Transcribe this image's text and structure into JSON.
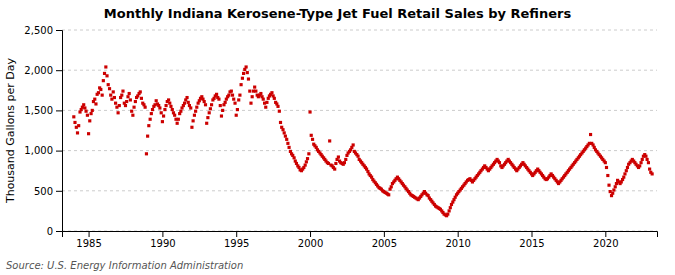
{
  "chart_data": {
    "type": "scatter",
    "title": "Monthly Indiana Kerosene-Type Jet Fuel Retail Sales by Refiners",
    "ylabel": "Thousand Gallons per Day",
    "annotations": [
      "Source: U.S. Energy Information Administration"
    ],
    "color": "#cc0000",
    "marker": "square",
    "grid": "y",
    "xlim": [
      1983.2,
      2023.5
    ],
    "xticks": [
      1985,
      1990,
      1995,
      2000,
      2005,
      2010,
      2015,
      2020
    ],
    "ylim": [
      0,
      2500
    ],
    "yticks": [
      0,
      500,
      {
        "value": 1000,
        "label": "1,000"
      },
      {
        "value": 1500,
        "label": "1,500"
      },
      {
        "value": 2000,
        "label": "2,000"
      },
      {
        "value": 2500,
        "label": "2,500"
      }
    ],
    "x": [
      1984.0,
      1984.08,
      1984.17,
      1984.25,
      1984.33,
      1984.42,
      1984.5,
      1984.58,
      1984.67,
      1984.75,
      1984.83,
      1984.92,
      1985.0,
      1985.08,
      1985.17,
      1985.25,
      1985.33,
      1985.42,
      1985.5,
      1985.58,
      1985.67,
      1985.75,
      1985.83,
      1985.92,
      1986.0,
      1986.08,
      1986.17,
      1986.25,
      1986.33,
      1986.42,
      1986.5,
      1986.58,
      1986.67,
      1986.75,
      1986.83,
      1986.92,
      1987.0,
      1987.08,
      1987.17,
      1987.25,
      1987.33,
      1987.42,
      1987.5,
      1987.58,
      1987.67,
      1987.75,
      1987.83,
      1987.92,
      1988.0,
      1988.08,
      1988.17,
      1988.25,
      1988.33,
      1988.42,
      1988.5,
      1988.58,
      1988.67,
      1988.75,
      1988.83,
      1988.92,
      1989.0,
      1989.08,
      1989.17,
      1989.25,
      1989.33,
      1989.42,
      1989.5,
      1989.58,
      1989.67,
      1989.75,
      1989.83,
      1989.92,
      1990.0,
      1990.08,
      1990.17,
      1990.25,
      1990.33,
      1990.42,
      1990.5,
      1990.58,
      1990.67,
      1990.75,
      1990.83,
      1990.92,
      1991.0,
      1991.08,
      1991.17,
      1991.25,
      1991.33,
      1991.42,
      1991.5,
      1991.58,
      1991.67,
      1991.75,
      1991.83,
      1991.92,
      1992.0,
      1992.08,
      1992.17,
      1992.25,
      1992.33,
      1992.42,
      1992.5,
      1992.58,
      1992.67,
      1992.75,
      1992.83,
      1992.92,
      1993.0,
      1993.08,
      1993.17,
      1993.25,
      1993.33,
      1993.42,
      1993.5,
      1993.58,
      1993.67,
      1993.75,
      1993.83,
      1993.92,
      1994.0,
      1994.08,
      1994.17,
      1994.25,
      1994.33,
      1994.42,
      1994.5,
      1994.58,
      1994.67,
      1994.75,
      1994.83,
      1994.92,
      1995.0,
      1995.08,
      1995.17,
      1995.25,
      1995.33,
      1995.42,
      1995.5,
      1995.58,
      1995.67,
      1995.75,
      1995.83,
      1995.92,
      1996.0,
      1996.08,
      1996.17,
      1996.25,
      1996.33,
      1996.42,
      1996.5,
      1996.58,
      1996.67,
      1996.75,
      1996.83,
      1996.92,
      1997.0,
      1997.08,
      1997.17,
      1997.25,
      1997.33,
      1997.42,
      1997.5,
      1997.58,
      1997.67,
      1997.75,
      1997.83,
      1997.92,
      1998.0,
      1998.08,
      1998.17,
      1998.25,
      1998.33,
      1998.42,
      1998.5,
      1998.58,
      1998.67,
      1998.75,
      1998.83,
      1998.92,
      1999.0,
      1999.08,
      1999.17,
      1999.25,
      1999.33,
      1999.42,
      1999.5,
      1999.58,
      1999.67,
      1999.75,
      1999.83,
      1999.92,
      2000.0,
      2000.08,
      2000.17,
      2000.25,
      2000.33,
      2000.42,
      2000.5,
      2000.58,
      2000.67,
      2000.75,
      2000.83,
      2000.92,
      2001.0,
      2001.08,
      2001.17,
      2001.25,
      2001.33,
      2001.42,
      2001.5,
      2001.58,
      2001.67,
      2001.75,
      2001.83,
      2001.92,
      2002.0,
      2002.08,
      2002.17,
      2002.25,
      2002.33,
      2002.42,
      2002.5,
      2002.58,
      2002.67,
      2002.75,
      2002.83,
      2002.92,
      2003.0,
      2003.08,
      2003.17,
      2003.25,
      2003.33,
      2003.42,
      2003.5,
      2003.58,
      2003.67,
      2003.75,
      2003.83,
      2003.92,
      2004.0,
      2004.08,
      2004.17,
      2004.25,
      2004.33,
      2004.42,
      2004.5,
      2004.58,
      2004.67,
      2004.75,
      2004.83,
      2004.92,
      2005.0,
      2005.08,
      2005.17,
      2005.25,
      2005.33,
      2005.42,
      2005.5,
      2005.58,
      2005.67,
      2005.75,
      2005.83,
      2005.92,
      2006.0,
      2006.08,
      2006.17,
      2006.25,
      2006.33,
      2006.42,
      2006.5,
      2006.58,
      2006.67,
      2006.75,
      2006.83,
      2006.92,
      2007.0,
      2007.08,
      2007.17,
      2007.25,
      2007.33,
      2007.42,
      2007.5,
      2007.58,
      2007.67,
      2007.75,
      2007.83,
      2007.92,
      2008.0,
      2008.08,
      2008.17,
      2008.25,
      2008.33,
      2008.42,
      2008.5,
      2008.58,
      2008.67,
      2008.75,
      2008.83,
      2008.92,
      2009.0,
      2009.08,
      2009.17,
      2009.25,
      2009.33,
      2009.42,
      2009.5,
      2009.58,
      2009.67,
      2009.75,
      2009.83,
      2009.92,
      2010.0,
      2010.08,
      2010.17,
      2010.25,
      2010.33,
      2010.42,
      2010.5,
      2010.58,
      2010.67,
      2010.75,
      2010.83,
      2010.92,
      2011.0,
      2011.08,
      2011.17,
      2011.25,
      2011.33,
      2011.42,
      2011.5,
      2011.58,
      2011.67,
      2011.75,
      2011.83,
      2011.92,
      2012.0,
      2012.08,
      2012.17,
      2012.25,
      2012.33,
      2012.42,
      2012.5,
      2012.58,
      2012.67,
      2012.75,
      2012.83,
      2012.92,
      2013.0,
      2013.08,
      2013.17,
      2013.25,
      2013.33,
      2013.42,
      2013.5,
      2013.58,
      2013.67,
      2013.75,
      2013.83,
      2013.92,
      2014.0,
      2014.08,
      2014.17,
      2014.25,
      2014.33,
      2014.42,
      2014.5,
      2014.58,
      2014.67,
      2014.75,
      2014.83,
      2014.92,
      2015.0,
      2015.08,
      2015.17,
      2015.25,
      2015.33,
      2015.42,
      2015.5,
      2015.58,
      2015.67,
      2015.75,
      2015.83,
      2015.92,
      2016.0,
      2016.08,
      2016.17,
      2016.25,
      2016.33,
      2016.42,
      2016.5,
      2016.58,
      2016.67,
      2016.75,
      2016.83,
      2016.92,
      2017.0,
      2017.08,
      2017.17,
      2017.25,
      2017.33,
      2017.42,
      2017.5,
      2017.58,
      2017.67,
      2017.75,
      2017.83,
      2017.92,
      2018.0,
      2018.08,
      2018.17,
      2018.25,
      2018.33,
      2018.42,
      2018.5,
      2018.58,
      2018.67,
      2018.75,
      2018.83,
      2018.92,
      2019.0,
      2019.08,
      2019.17,
      2019.25,
      2019.33,
      2019.42,
      2019.5,
      2019.58,
      2019.67,
      2019.75,
      2019.83,
      2019.92,
      2020.0,
      2020.08,
      2020.17,
      2020.25,
      2020.33,
      2020.42,
      2020.5,
      2020.58,
      2020.67,
      2020.75,
      2020.83,
      2020.92,
      2021.0,
      2021.08,
      2021.17,
      2021.25,
      2021.33,
      2021.42,
      2021.5,
      2021.58,
      2021.67,
      2021.75,
      2021.83,
      2021.92,
      2022.0,
      2022.08,
      2022.17,
      2022.25,
      2022.33,
      2022.42,
      2022.5,
      2022.58,
      2022.67,
      2022.75,
      2022.83,
      2022.92,
      2023.0,
      2023.08,
      2023.17
    ],
    "values": [
      1420,
      1350,
      1290,
      1220,
      1310,
      1480,
      1510,
      1540,
      1570,
      1530,
      1490,
      1440,
      1210,
      1370,
      1460,
      1500,
      1610,
      1640,
      1580,
      1700,
      1720,
      1780,
      1760,
      1690,
      1870,
      1960,
      2040,
      1930,
      1820,
      1770,
      1690,
      1640,
      1730,
      1660,
      1590,
      1540,
      1470,
      1560,
      1660,
      1690,
      1740,
      1590,
      1560,
      1610,
      1670,
      1710,
      1630,
      1490,
      1440,
      1540,
      1610,
      1660,
      1680,
      1710,
      1730,
      1650,
      1590,
      1570,
      1540,
      960,
      1180,
      1310,
      1390,
      1460,
      1510,
      1550,
      1570,
      1620,
      1580,
      1560,
      1530,
      1470,
      1360,
      1430,
      1510,
      1560,
      1610,
      1630,
      1590,
      1550,
      1510,
      1470,
      1440,
      1390,
      1340,
      1390,
      1460,
      1490,
      1530,
      1560,
      1590,
      1630,
      1660,
      1600,
      1560,
      1530,
      1290,
      1370,
      1440,
      1490,
      1540,
      1590,
      1620,
      1650,
      1670,
      1640,
      1610,
      1570,
      1340,
      1410,
      1470,
      1520,
      1570,
      1630,
      1650,
      1680,
      1700,
      1660,
      1640,
      1560,
      1430,
      1500,
      1570,
      1600,
      1640,
      1670,
      1690,
      1730,
      1740,
      1690,
      1640,
      1590,
      1440,
      1510,
      1630,
      1690,
      1820,
      1900,
      1960,
      2010,
      2040,
      1970,
      1890,
      1740,
      1590,
      1670,
      1740,
      1790,
      1740,
      1690,
      1670,
      1690,
      1710,
      1670,
      1640,
      1590,
      1540,
      1600,
      1650,
      1680,
      1700,
      1720,
      1680,
      1650,
      1600,
      1580,
      1550,
      1490,
      1350,
      1290,
      1260,
      1220,
      1180,
      1140,
      1090,
      1040,
      990,
      960,
      940,
      910,
      870,
      840,
      810,
      790,
      760,
      750,
      770,
      790,
      820,
      860,
      900,
      960,
      1480,
      1190,
      1140,
      1080,
      1060,
      1040,
      1010,
      990,
      970,
      950,
      930,
      910,
      890,
      870,
      850,
      840,
      1120,
      820,
      810,
      790,
      770,
      840,
      890,
      920,
      870,
      850,
      840,
      830,
      850,
      890,
      940,
      970,
      990,
      1010,
      1040,
      1070,
      990,
      970,
      950,
      930,
      890,
      870,
      850,
      830,
      810,
      790,
      770,
      740,
      710,
      690,
      670,
      640,
      620,
      600,
      580,
      560,
      540,
      530,
      520,
      500,
      490,
      480,
      470,
      460,
      450,
      520,
      550,
      590,
      610,
      630,
      650,
      670,
      650,
      630,
      610,
      590,
      570,
      550,
      530,
      510,
      490,
      470,
      450,
      440,
      430,
      420,
      410,
      400,
      390,
      410,
      430,
      450,
      470,
      490,
      470,
      450,
      440,
      410,
      390,
      370,
      350,
      330,
      310,
      300,
      290,
      280,
      270,
      250,
      230,
      210,
      200,
      190,
      210,
      250,
      290,
      330,
      360,
      390,
      420,
      450,
      470,
      490,
      510,
      530,
      550,
      570,
      590,
      610,
      630,
      640,
      650,
      630,
      610,
      630,
      650,
      670,
      690,
      710,
      730,
      750,
      770,
      790,
      810,
      790,
      770,
      750,
      770,
      790,
      810,
      830,
      850,
      870,
      890,
      870,
      850,
      810,
      790,
      810,
      830,
      850,
      870,
      890,
      870,
      850,
      830,
      810,
      790,
      770,
      750,
      770,
      790,
      810,
      830,
      850,
      830,
      810,
      790,
      770,
      750,
      730,
      710,
      690,
      710,
      730,
      750,
      770,
      750,
      730,
      710,
      690,
      670,
      650,
      640,
      650,
      670,
      690,
      710,
      690,
      670,
      650,
      630,
      610,
      590,
      610,
      630,
      650,
      670,
      690,
      710,
      730,
      750,
      770,
      790,
      810,
      830,
      850,
      870,
      890,
      910,
      930,
      950,
      970,
      990,
      1010,
      1030,
      1050,
      1070,
      1090,
      1200,
      1090,
      1070,
      1040,
      1010,
      990,
      970,
      950,
      930,
      910,
      890,
      870,
      850,
      790,
      690,
      570,
      490,
      440,
      470,
      510,
      550,
      590,
      630,
      610,
      590,
      610,
      640,
      670,
      710,
      750,
      790,
      830,
      850,
      870,
      890,
      870,
      850,
      830,
      810,
      790,
      810,
      850,
      890,
      930,
      950,
      930,
      890,
      850,
      770,
      730,
      710
    ]
  }
}
